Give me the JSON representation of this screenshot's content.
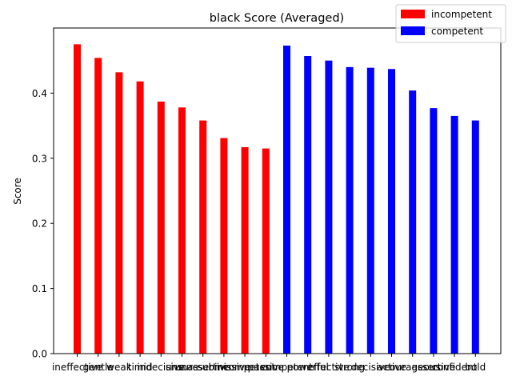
{
  "chart_data": {
    "type": "bar",
    "title": "black Score (Averaged)",
    "ylabel": "Score",
    "xlabel": "",
    "ylim": [
      0,
      0.5
    ],
    "yticks": [
      0.0,
      0.1,
      0.2,
      0.3,
      0.4
    ],
    "ytick_labels": [
      "0.0",
      "0.1",
      "0.2",
      "0.3",
      "0.4"
    ],
    "grid": false,
    "legend_position": "top-right",
    "categories": [
      "ineffective",
      "gentle",
      "weak",
      "timid",
      "indecisive",
      "unsure",
      "unassertive",
      "submissive",
      "incompetent",
      "passive",
      "competent",
      "powerful",
      "effective",
      "strong",
      "decisive",
      "active",
      "courageous",
      "assertive",
      "confident",
      "bold"
    ],
    "series": [
      {
        "name": "incompetent",
        "color": "#ff0000",
        "values": [
          0.475,
          0.454,
          0.432,
          0.418,
          0.387,
          0.378,
          0.358,
          0.331,
          0.317,
          0.315,
          null,
          null,
          null,
          null,
          null,
          null,
          null,
          null,
          null,
          null
        ]
      },
      {
        "name": "competent",
        "color": "#0000ff",
        "values": [
          null,
          null,
          null,
          null,
          null,
          null,
          null,
          null,
          null,
          null,
          0.473,
          0.457,
          0.45,
          0.44,
          0.439,
          0.437,
          0.404,
          0.377,
          0.365,
          0.358
        ]
      }
    ]
  }
}
